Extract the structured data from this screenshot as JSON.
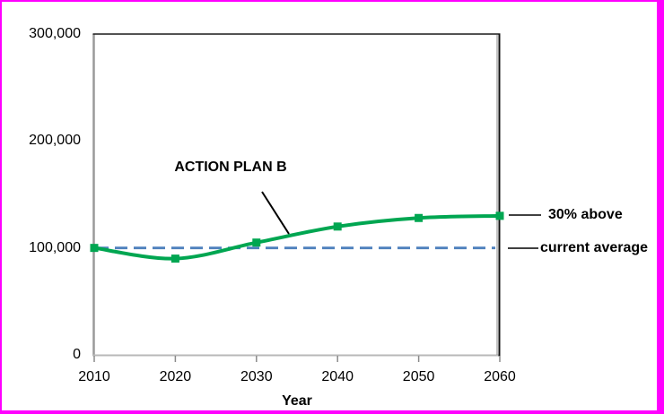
{
  "frame": {
    "border_color": "#FF00FF",
    "background": "#FFFFFF"
  },
  "chart_data": {
    "type": "line",
    "title": "",
    "xlabel": "Year",
    "ylabel": "",
    "x": [
      2010,
      2020,
      2030,
      2040,
      2050,
      2060
    ],
    "x_tick_labels": [
      "2010",
      "2020",
      "2030",
      "2040",
      "2050",
      "2060"
    ],
    "y_ticks": [
      0,
      100000,
      200000,
      300000
    ],
    "y_tick_labels": [
      "0",
      "100,000",
      "200,000",
      "300,000"
    ],
    "xlim": [
      2010,
      2060
    ],
    "ylim": [
      0,
      300000
    ],
    "grid": false,
    "legend_position": "none",
    "series": [
      {
        "name": "ACTION PLAN B",
        "values": [
          100000,
          90000,
          105000,
          120000,
          128000,
          130000
        ],
        "color": "#00A651",
        "marker": "square",
        "line_style": "solid",
        "smooth": true
      }
    ],
    "reference_line": {
      "label": "current average",
      "value": 100000,
      "color": "#4F81BD",
      "line_style": "dashed"
    },
    "annotations": [
      {
        "text": "ACTION PLAN B",
        "points_to": "series curve between 2030 and 2040"
      },
      {
        "text": "30% above",
        "points_to": "series end value at 2060"
      },
      {
        "text": "current average",
        "points_to": "dashed reference line at 100,000"
      }
    ]
  }
}
